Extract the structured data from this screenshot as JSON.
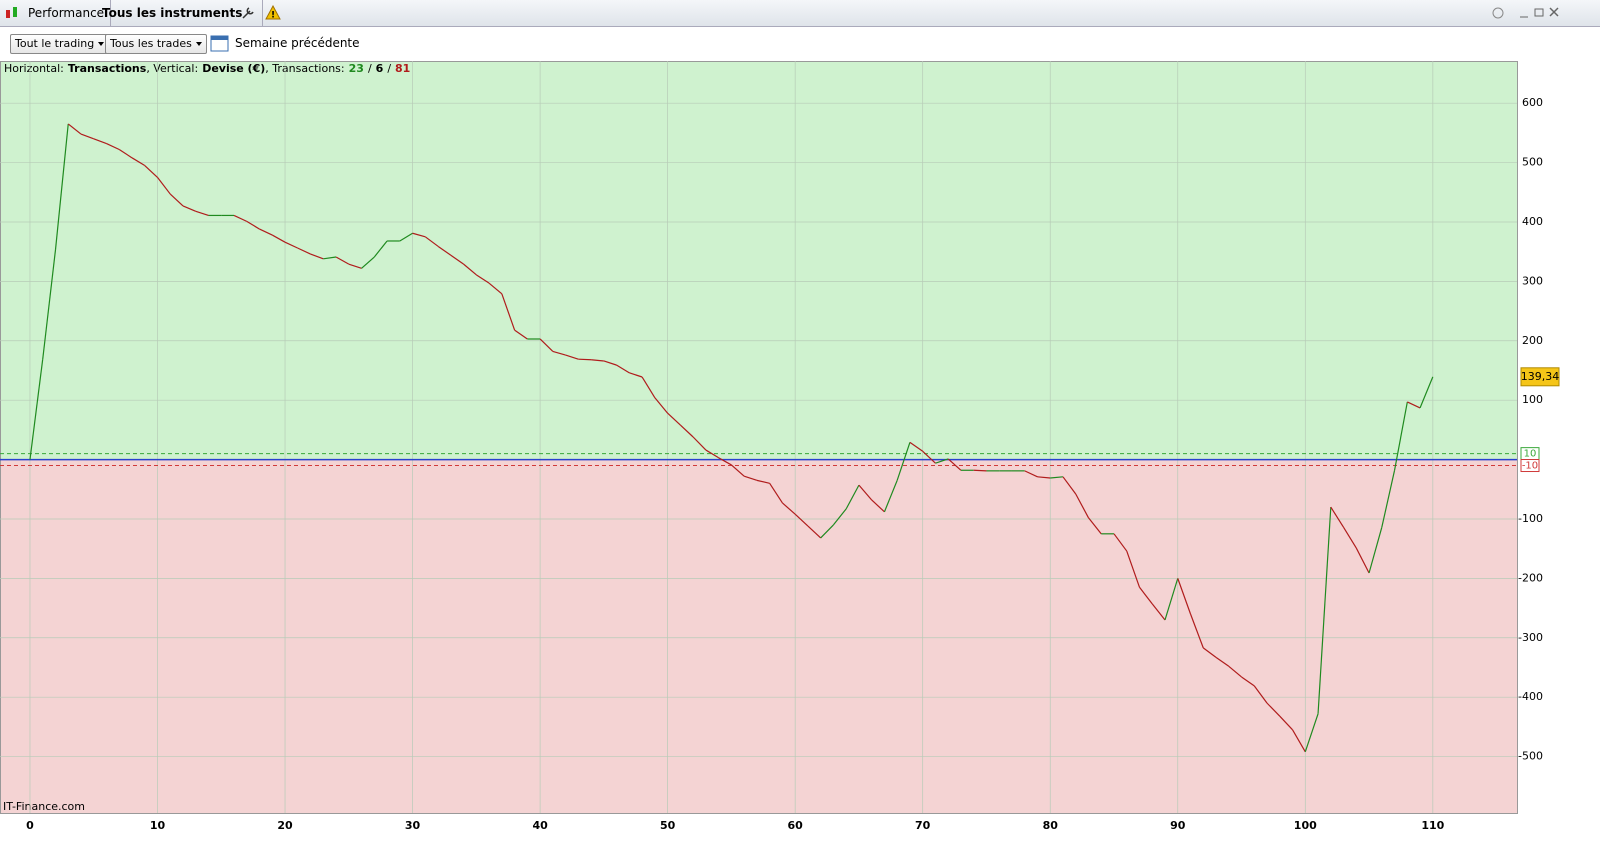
{
  "toolbar": {
    "tab": "Performance",
    "instrument": "Tous les instruments",
    "filter_trading": "Tout le trading",
    "filter_trades": "Tous les trades",
    "period": "Semaine précédente"
  },
  "info": {
    "h_label": "Horizontal:",
    "h_value": "Transactions",
    "v_label": ", Vertical:",
    "v_value": "Devise (€)",
    "t_label": ", Transactions:",
    "wins": 23,
    "sep1": "/",
    "neutral": 6,
    "sep2": "/",
    "losses": 81
  },
  "watermark": "IT-Finance.com",
  "chart_data": {
    "type": "line",
    "x": [
      0,
      1,
      2,
      3,
      4,
      5,
      6,
      7,
      8,
      9,
      10,
      11,
      12,
      13,
      14,
      15,
      16,
      17,
      18,
      19,
      20,
      21,
      22,
      23,
      24,
      25,
      26,
      27,
      28,
      29,
      30,
      31,
      32,
      33,
      34,
      35,
      36,
      37,
      38,
      39,
      40,
      41,
      42,
      43,
      44,
      45,
      46,
      47,
      48,
      49,
      50,
      51,
      52,
      53,
      54,
      55,
      56,
      57,
      58,
      59,
      60,
      61,
      62,
      63,
      64,
      65,
      66,
      67,
      68,
      69,
      70,
      71,
      72,
      73,
      74,
      75,
      76,
      77,
      78,
      79,
      80,
      81,
      82,
      83,
      84,
      85,
      86,
      87,
      88,
      89,
      90,
      91,
      92,
      93,
      94,
      95,
      96,
      97,
      98,
      99,
      100,
      101,
      102,
      103,
      104,
      105,
      106,
      107,
      108,
      109,
      110
    ],
    "values": [
      0,
      169,
      353,
      565,
      548,
      540,
      532,
      522,
      508,
      495,
      475,
      447,
      427,
      418,
      411,
      411,
      411,
      401,
      388,
      378,
      366,
      356,
      346,
      338,
      341,
      329,
      322,
      341,
      368,
      368,
      381,
      375,
      359,
      344,
      329,
      311,
      297,
      279,
      218,
      203,
      203,
      182,
      176,
      169,
      168,
      166,
      159,
      146,
      139,
      104,
      78,
      58,
      38,
      16,
      3,
      -9,
      -28,
      -35,
      -40,
      -73,
      -92,
      -112,
      -132,
      -110,
      -83,
      -43,
      -68,
      -88,
      -35,
      29,
      14,
      -6,
      1,
      -18,
      -18,
      -19,
      -19,
      -19,
      -19,
      -29,
      -31,
      -29,
      -58,
      -98,
      -125,
      -125,
      -154,
      -215,
      -243,
      -270,
      -200,
      -260,
      -317,
      -333,
      -348,
      -366,
      -381,
      -410,
      -432,
      -455,
      -492,
      -428,
      -80,
      -114,
      -149,
      -191,
      -114,
      -18,
      97,
      87,
      139.34
    ],
    "last_label": "139,34",
    "up_color": "#1f8a1f",
    "down_color": "#b01c1c",
    "positive_fill": "#cff2cf",
    "negative_fill": "#f4d3d3",
    "zero_color": "#2a3fd0",
    "thresholds": [
      {
        "value": 10,
        "color": "#3aa83a"
      },
      {
        "value": -10,
        "color": "#d03a3a"
      }
    ],
    "xlim": [
      -2.35,
      116.6
    ],
    "ylim": [
      -595,
      671
    ],
    "xticks": [
      0,
      10,
      20,
      30,
      40,
      50,
      60,
      70,
      80,
      90,
      100,
      110
    ],
    "yticks": [
      600,
      500,
      400,
      300,
      200,
      100,
      -100,
      -200,
      -300,
      -400,
      -500
    ],
    "grid": true
  }
}
